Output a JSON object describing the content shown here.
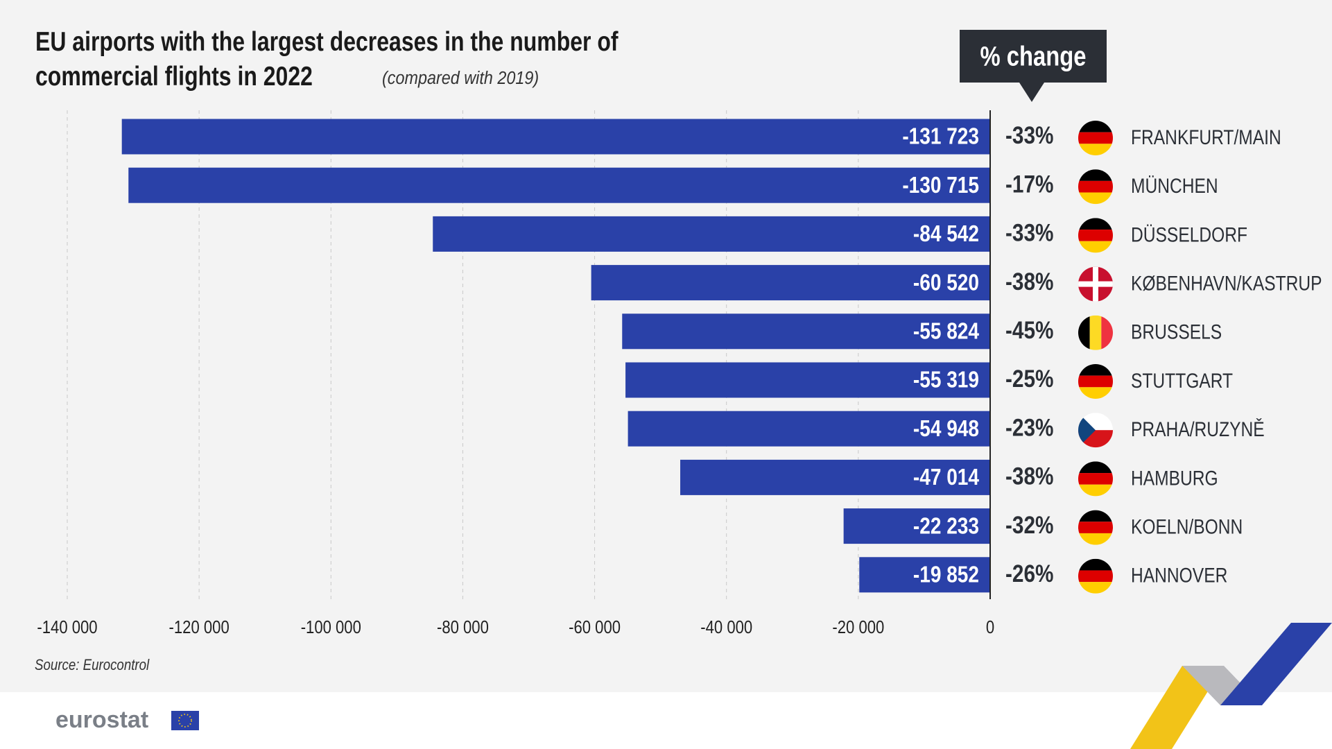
{
  "chart_data": {
    "type": "hbar",
    "title": "EU airports with the largest decreases in the number of commercial flights in 2022",
    "subtitle": "(compared with 2019)",
    "change_header": "% change",
    "categories": [
      "FRANKFURT/MAIN",
      "MÜNCHEN",
      "DÜSSELDORF",
      "KØBENHAVN/KASTRUP",
      "BRUSSELS",
      "STUTTGART",
      "PRAHA/RUZYNĚ",
      "HAMBURG",
      "KOELN/BONN",
      "HANNOVER"
    ],
    "values": [
      -131723,
      -130715,
      -84542,
      -60520,
      -55824,
      -55319,
      -54948,
      -47014,
      -22233,
      -19852
    ],
    "value_labels": [
      "-131 723",
      "-130 715",
      "-84 542",
      "-60 520",
      "-55 824",
      "-55 319",
      "-54 948",
      "-47 014",
      "-22 233",
      "-19 852"
    ],
    "change_pct": [
      -33,
      -17,
      -33,
      -38,
      -45,
      -25,
      -23,
      -38,
      -32,
      -26
    ],
    "change_pct_labels": [
      "-33%",
      "-17%",
      "-33%",
      "-38%",
      "-45%",
      "-25%",
      "-23%",
      "-38%",
      "-32%",
      "-26%"
    ],
    "color": "#2a41a8",
    "xlim": [
      -140000,
      0
    ],
    "xticks": [
      {
        "value": -140000,
        "label": "-140 000"
      },
      {
        "value": -120000,
        "label": "-120 000"
      },
      {
        "value": -100000,
        "label": "-100 000"
      },
      {
        "value": -80000,
        "label": "-80 000"
      },
      {
        "value": -60000,
        "label": "-60 000"
      },
      {
        "value": -40000,
        "label": "-40 000"
      },
      {
        "value": -20000,
        "label": "-20 000"
      },
      0
    ],
    "grid": true,
    "source": "Source: Eurocontrol"
  },
  "logo": "eurostat"
}
